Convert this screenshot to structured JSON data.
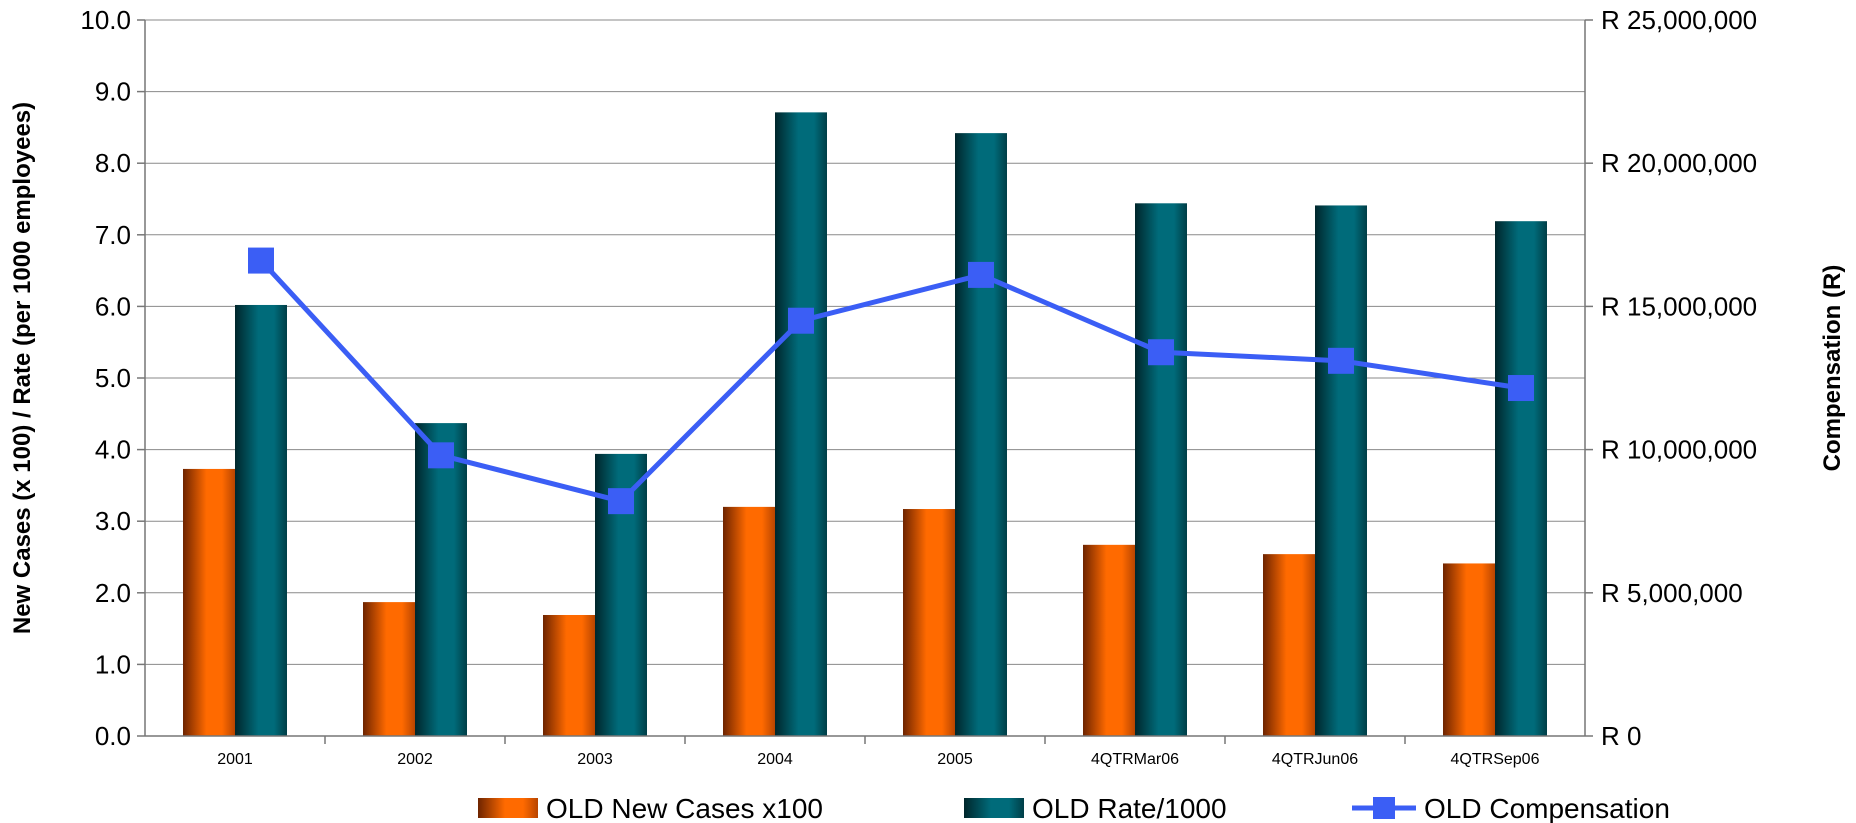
{
  "chart_data": {
    "type": "bar",
    "title": "",
    "categories": [
      "2001",
      "2002",
      "2003",
      "2004",
      "2005",
      "4QTRMar06",
      "4QTRJun06",
      "4QTRSep06"
    ],
    "ylabel": "New Cases (x 100) / Rate (per 1000 employees)",
    "y2label": "Compensation (R)",
    "ylim": [
      0,
      10
    ],
    "y2lim": [
      0,
      25000000
    ],
    "yticks": [
      "0.0",
      "1.0",
      "2.0",
      "3.0",
      "4.0",
      "5.0",
      "6.0",
      "7.0",
      "8.0",
      "9.0",
      "10.0"
    ],
    "y2ticks": [
      "R 0",
      "R 5,000,000",
      "R 10,000,000",
      "R 15,000,000",
      "R 20,000,000",
      "R 25,000,000"
    ],
    "grid": true,
    "legend_position": "bottom",
    "series": [
      {
        "name": "OLD New Cases x100",
        "type": "bar",
        "axis": "left",
        "color": "#FF6A00",
        "values": [
          3.73,
          1.87,
          1.69,
          3.2,
          3.17,
          2.67,
          2.54,
          2.41
        ]
      },
      {
        "name": "OLD Rate/1000",
        "type": "bar",
        "axis": "left",
        "color": "#006B7A",
        "values": [
          6.02,
          4.37,
          3.94,
          8.71,
          8.42,
          7.44,
          7.41,
          7.19
        ]
      },
      {
        "name": "OLD Compensation",
        "type": "line",
        "axis": "right",
        "color": "#3B5EF5",
        "marker": "square",
        "values": [
          16600000,
          9800000,
          8200000,
          14500000,
          16100000,
          13400000,
          13100000,
          12150000
        ]
      }
    ]
  }
}
